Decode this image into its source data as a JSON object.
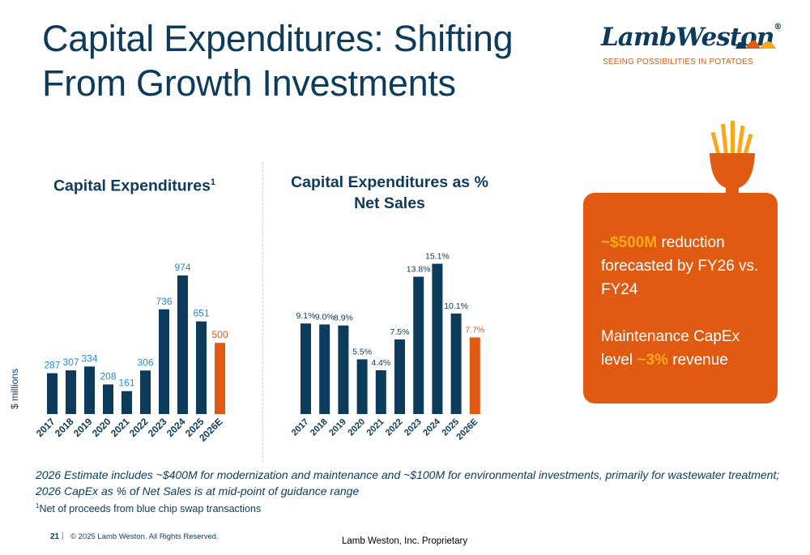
{
  "title": "Capital Expenditures: Shifting From Growth Investments",
  "logo": {
    "brand": "LambWeston",
    "registered": "®",
    "tagline": "SEEING POSSIBILITIES IN POTATOES",
    "colors": {
      "navy": "#0d3b5c",
      "orange": "#e05a12",
      "gold": "#f7a91b"
    }
  },
  "colors": {
    "bar": "#0d3b5c",
    "estimate_bar": "#e05a12",
    "capex_label": "#2b8ac6",
    "pct_label": "#0d3b5c"
  },
  "chart_data": [
    {
      "type": "bar",
      "title": "Capital Expenditures",
      "title_superscript": "1",
      "ylabel": "$ millions",
      "categories": [
        "2017",
        "2018",
        "2019",
        "2020",
        "2021",
        "2022",
        "2023",
        "2024",
        "2025",
        "2026E"
      ],
      "values": [
        287,
        307,
        334,
        208,
        161,
        306,
        736,
        974,
        651,
        500
      ],
      "labels": [
        "287",
        "307",
        "334",
        "208",
        "161",
        "306",
        "736",
        "974",
        "651",
        "500"
      ],
      "estimate_category": "2026E",
      "ylim": [
        0,
        1000
      ],
      "grid": false
    },
    {
      "type": "bar",
      "title": "Capital Expenditures as % Net Sales",
      "categories": [
        "2017",
        "2018",
        "2019",
        "2020",
        "2021",
        "2022",
        "2023",
        "2024",
        "2025",
        "2026E"
      ],
      "values": [
        9.1,
        9.0,
        8.9,
        5.5,
        4.4,
        7.5,
        13.8,
        15.1,
        10.1,
        7.7
      ],
      "labels": [
        "9.1%",
        "9.0%",
        "8.9%",
        "5.5%",
        "4.4%",
        "7.5%",
        "13.8%",
        "15.1%",
        "10.1%",
        "7.7%"
      ],
      "estimate_category": "2026E",
      "ylim": [
        0,
        16
      ],
      "grid": false
    }
  ],
  "callout": {
    "line1_highlight": "~$500M",
    "line1_rest": " reduction forecasted by FY26 vs. FY24",
    "line2_start": "Maintenance CapEx level ",
    "line2_highlight": "~3%",
    "line2_end": " revenue"
  },
  "note": "2026 Estimate includes ~$400M for modernization and maintenance and ~$100M for environmental investments, primarily for wastewater treatment; 2026 CapEx as % of Net Sales is at mid-point of guidance range",
  "footnote": {
    "marker": "1",
    "text": "Net of proceeds from blue chip swap transactions"
  },
  "footer": {
    "page_number": "21",
    "separator": "|",
    "copyright": "© 2025 Lamb Weston. All Rights Reserved.",
    "proprietary": "Lamb Weston, Inc. Proprietary"
  }
}
